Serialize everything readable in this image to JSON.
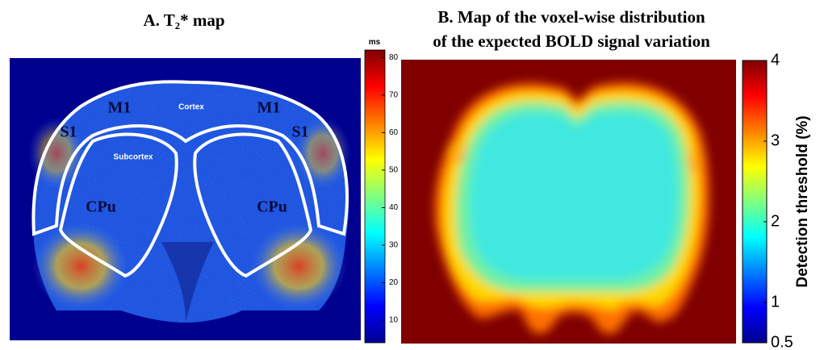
{
  "panels": [
    {
      "title": "A.  T₂* map",
      "labels": {
        "m1_left": "M1",
        "cortex": "Cortex",
        "m1_right": "M1",
        "s1_left": "S1",
        "s1_right": "S1",
        "subcortex": "Subcortex",
        "cpu_left": "CPu",
        "cpu_right": "CPu"
      },
      "colorbar": {
        "unit": "ms",
        "lim": [
          4,
          82
        ],
        "ticks": [
          10,
          20,
          30,
          40,
          50,
          60,
          70,
          80
        ]
      }
    },
    {
      "title_lines": [
        "B. Map of  the voxel-wise distribution",
        "of the expected BOLD signal variation"
      ],
      "colorbar": {
        "label": "Detection threshold (%)",
        "lim": [
          0.5,
          4
        ],
        "ticks": [
          0.5,
          1,
          2,
          3,
          4
        ]
      }
    }
  ]
}
